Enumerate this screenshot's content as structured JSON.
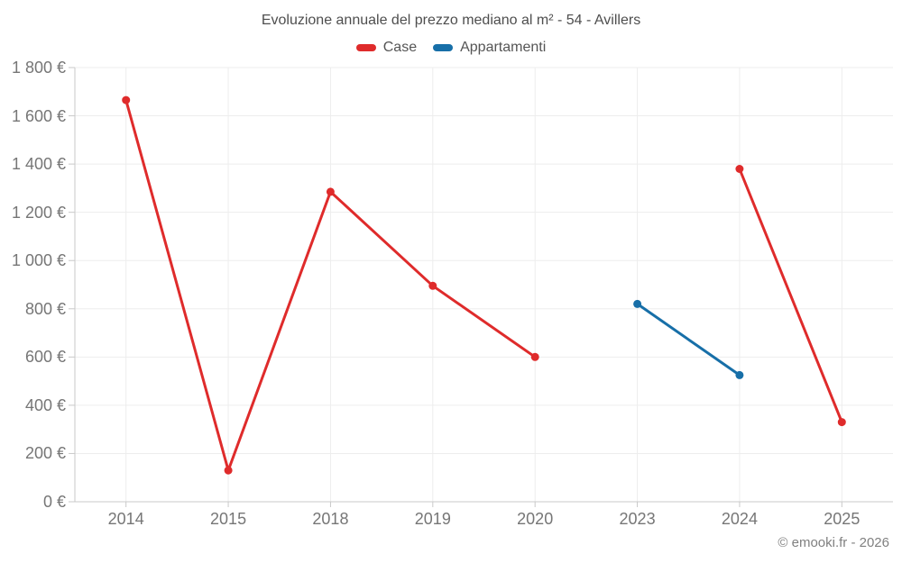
{
  "title": "Evoluzione annuale del prezzo mediano al m² - 54 - Avillers",
  "footer": "© emooki.fr - 2026",
  "chart_data": {
    "type": "line",
    "title": "Evoluzione annuale del prezzo mediano al m² - 54 - Avillers",
    "categories": [
      "2014",
      "2015",
      "2018",
      "2019",
      "2020",
      "2023",
      "2024",
      "2025"
    ],
    "series": [
      {
        "name": "Case",
        "color": "#df2b2b",
        "values": [
          1665,
          130,
          1285,
          895,
          600,
          null,
          1380,
          330
        ]
      },
      {
        "name": "Appartamenti",
        "color": "#176fa8",
        "values": [
          null,
          null,
          null,
          null,
          null,
          820,
          525,
          null
        ]
      }
    ],
    "xlabel": "",
    "ylabel": "",
    "ylim": [
      0,
      1800
    ],
    "y_tick_step": 200,
    "y_tick_labels": [
      "0 €",
      "200 €",
      "400 €",
      "600 €",
      "800 €",
      "1 000 €",
      "1 200 €",
      "1 400 €",
      "1 600 €",
      "1 800 €"
    ],
    "grid": true,
    "legend_position": "top",
    "currency": "€"
  },
  "style_colors": {
    "gridline": "#ededed",
    "axis": "#c9c9c9",
    "title_text": "#4e4e4e",
    "axis_label_text": "#767676"
  }
}
